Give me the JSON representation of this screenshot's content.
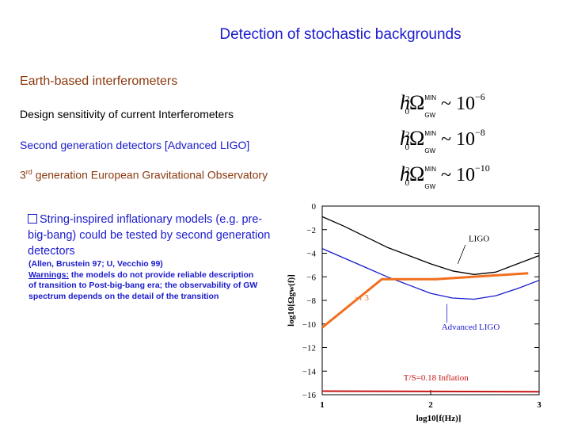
{
  "title": "Detection of stochastic backgrounds",
  "section_heading": "Earth-based interferometers",
  "rows": [
    {
      "label": "Design sensitivity of  current Interferometers",
      "exponent": "−6"
    },
    {
      "label": "Second generation detectors [Advanced LIGO]",
      "exponent": "−8"
    },
    {
      "label_prefix": "3",
      "label_sup": "rd",
      "label_suffix": " generation European Gravitational Observatory",
      "exponent": "−10"
    }
  ],
  "formula": {
    "h": "h",
    "sub": "0",
    "sup": "2",
    "omega": "Ω",
    "min": "MIN",
    "gw": "GW",
    "sim": "~",
    "ten": "10"
  },
  "bullet": {
    "marker": "q",
    "text": "String-inspired inflationary models (e.g. pre-big-bang) could be tested by second generation detectors"
  },
  "note": {
    "citation": "(Allen, Brustein 97; U, Vecchio 99)",
    "warning_label": "Warnings:",
    "warning_text": "  the models do not provide reliable description of transition to Post-big-bang era;  the observability of GW spectrum depends on the detail of the transition"
  },
  "chart_data": {
    "type": "line",
    "xlabel": "log10[f(Hz)]",
    "ylabel": "log10[Ωgw(f)]",
    "xlim": [
      1,
      3
    ],
    "ylim": [
      -16,
      0
    ],
    "xticks": [
      "1",
      "2",
      "3"
    ],
    "yticks": [
      "0",
      "−2",
      "−4",
      "−6",
      "−8",
      "−10",
      "−12",
      "−14",
      "−16"
    ],
    "series": [
      {
        "name": "LIGO",
        "color": "#000000",
        "x": [
          1.0,
          1.2,
          1.4,
          1.6,
          1.8,
          2.0,
          2.2,
          2.4,
          2.6,
          2.8,
          3.0
        ],
        "y": [
          -0.9,
          -1.7,
          -2.6,
          -3.5,
          -4.2,
          -4.9,
          -5.5,
          -5.8,
          -5.6,
          -4.9,
          -4.2
        ]
      },
      {
        "name": "Advanced LIGO",
        "color": "#1a1acd",
        "x": [
          1.0,
          1.2,
          1.4,
          1.6,
          1.8,
          2.0,
          2.2,
          2.4,
          2.6,
          2.8,
          3.0
        ],
        "y": [
          -3.6,
          -4.4,
          -5.2,
          -6.0,
          -6.7,
          -7.4,
          -7.8,
          -7.9,
          -7.6,
          -7.0,
          -6.3
        ]
      },
      {
        "name": "",
        "color": "#f07020",
        "x": [
          1.0,
          1.55,
          2.05,
          2.9
        ],
        "y": [
          -10.3,
          -6.2,
          -6.2,
          -5.7
        ]
      },
      {
        "name": "T/S=0.18 Inflation",
        "color": "#c81414",
        "x": [
          1.0,
          3.0
        ],
        "y": [
          -15.7,
          -15.75
        ]
      }
    ],
    "annotations": [
      "LIGO",
      "Advanced LIGO",
      "~f 3",
      "T/S=0.18 Inflation"
    ]
  }
}
